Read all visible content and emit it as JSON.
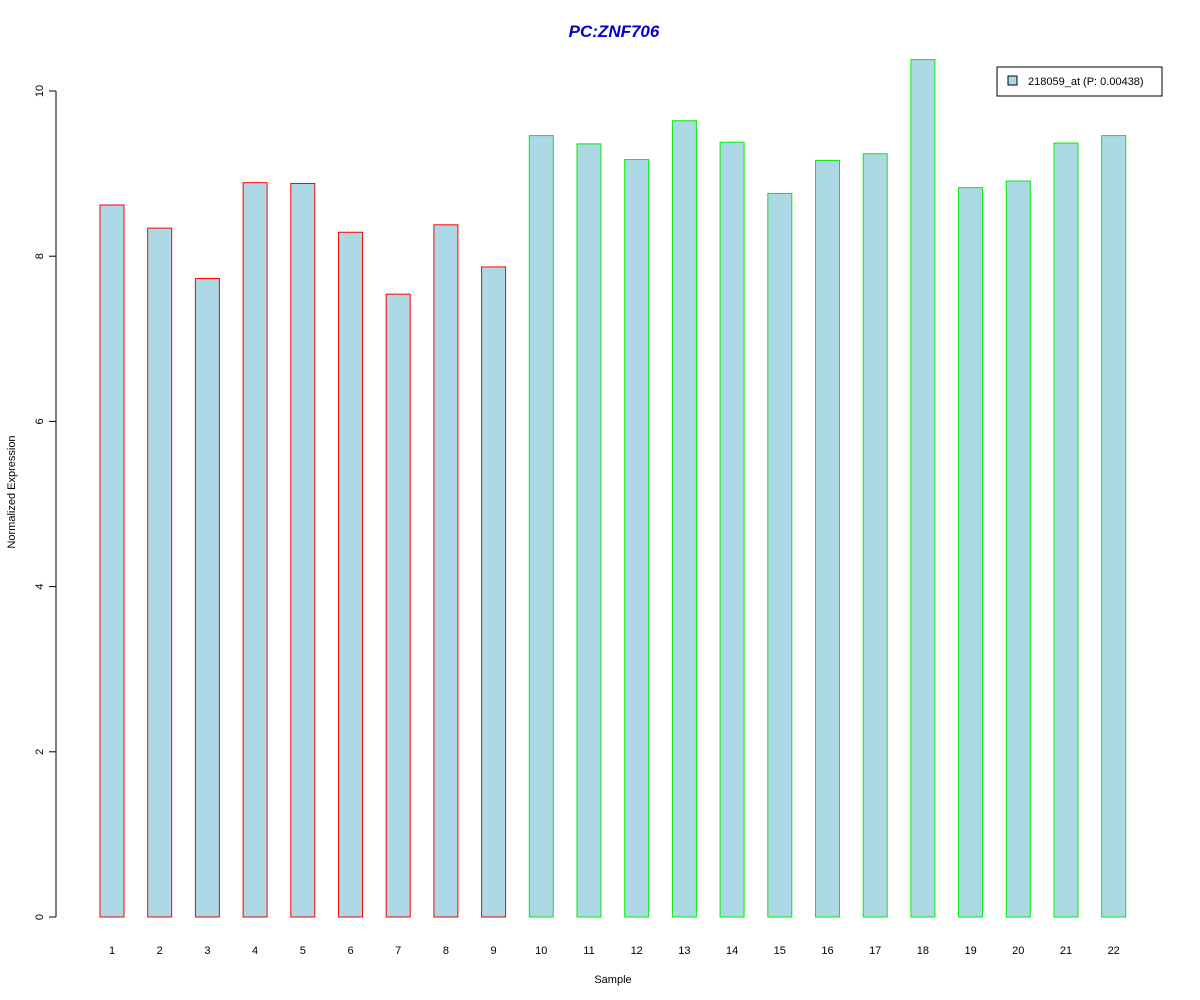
{
  "chart_data": {
    "type": "bar",
    "title": "PC:ZNF706",
    "xlabel": "Sample",
    "ylabel": "Normalized Expression",
    "categories": [
      "1",
      "2",
      "3",
      "4",
      "5",
      "6",
      "7",
      "8",
      "9",
      "10",
      "11",
      "12",
      "13",
      "14",
      "15",
      "16",
      "17",
      "18",
      "19",
      "20",
      "21",
      "22"
    ],
    "values": [
      8.62,
      8.34,
      7.73,
      8.89,
      8.88,
      8.29,
      7.54,
      8.38,
      7.87,
      9.46,
      9.36,
      9.17,
      9.64,
      9.38,
      8.76,
      9.16,
      9.24,
      10.38,
      8.83,
      8.91,
      9.37,
      9.46
    ],
    "ylim": [
      0,
      10.4
    ],
    "yticks": [
      0,
      2,
      4,
      6,
      8,
      10
    ],
    "grid": false,
    "series": [
      {
        "name": "218059_at (P: 0.00438)",
        "values": [
          8.62,
          8.34,
          7.73,
          8.89,
          8.88,
          8.29,
          7.54,
          8.38,
          7.87,
          9.46,
          9.36,
          9.17,
          9.64,
          9.38,
          8.76,
          9.16,
          9.24,
          10.38,
          8.83,
          8.91,
          9.37,
          9.46
        ]
      }
    ],
    "legend": {
      "label": "218059_at (P: 0.00438)",
      "placement": "top-right"
    },
    "colors": {
      "title": "#0000cc",
      "bar_fill": "#add8e6",
      "group1_border": "#ff0000",
      "group2_border": "#00ee00"
    },
    "border_colors": [
      "#ff0000",
      "#ff0000",
      "#ff0000",
      "#ff0000",
      "#ff0000",
      "#ff0000",
      "#ff0000",
      "#ff0000",
      "#ff0000",
      "#00ee00",
      "#00ee00",
      "#00ee00",
      "#00ee00",
      "#00ee00",
      "#00ee00",
      "#00ee00",
      "#00ee00",
      "#00ee00",
      "#00ee00",
      "#00ee00",
      "#00ee00",
      "#00ee00"
    ]
  }
}
